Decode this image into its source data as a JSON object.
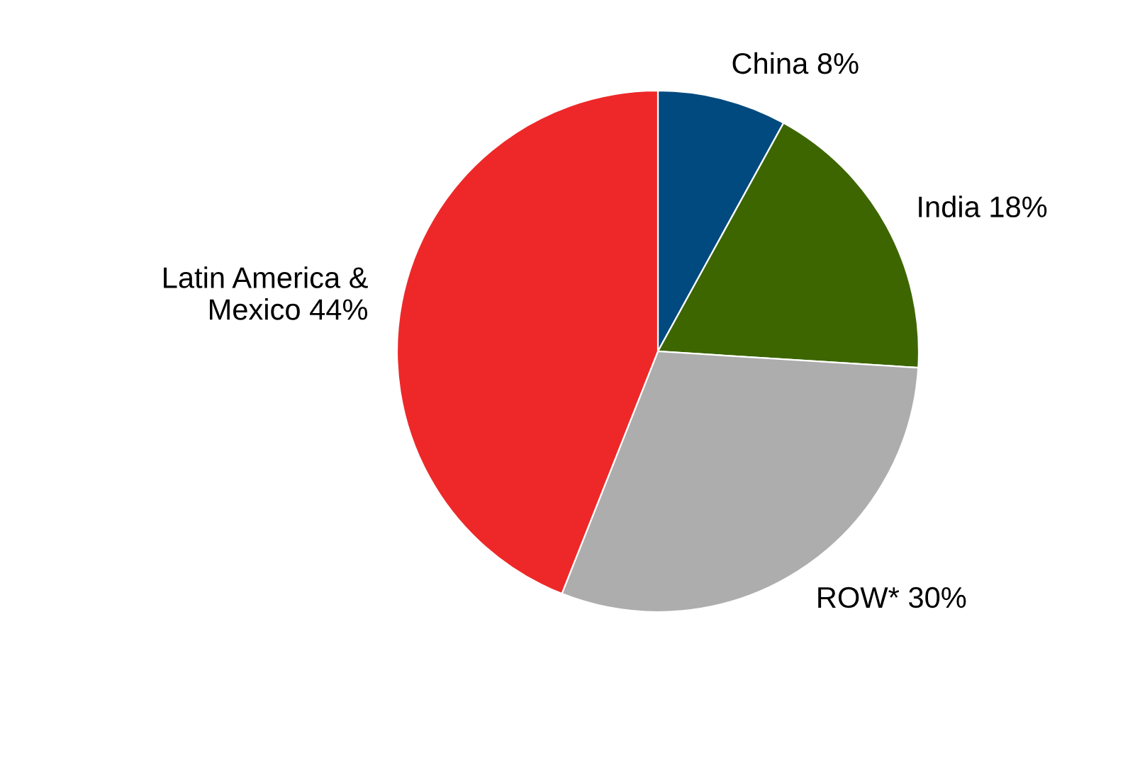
{
  "chart_data": {
    "type": "pie",
    "categories": [
      "China",
      "India",
      "ROW*",
      "Latin America &\nMexico"
    ],
    "values": [
      8,
      18,
      30,
      44
    ],
    "value_labels": [
      "8%",
      "18%",
      "30%",
      "44%"
    ],
    "colors": [
      "#004a7f",
      "#3d6600",
      "#adadad",
      "#ee2828"
    ]
  }
}
